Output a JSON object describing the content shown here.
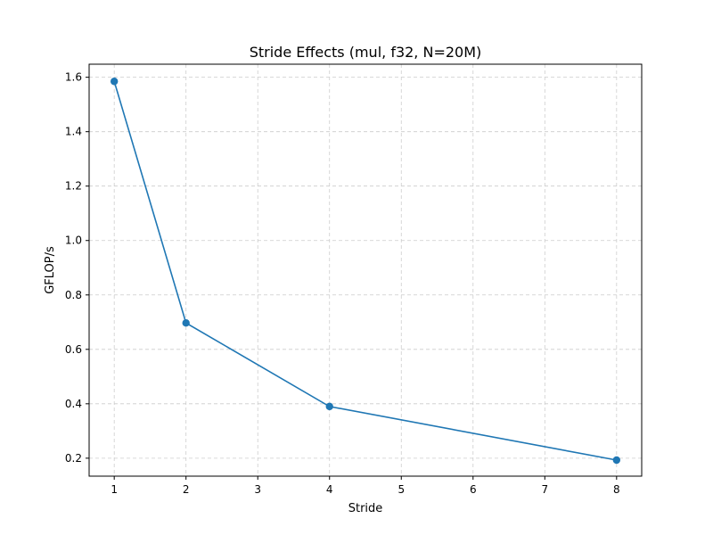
{
  "chart_data": {
    "type": "line",
    "title": "Stride Effects (mul, f32, N=20M)",
    "xlabel": "Stride",
    "ylabel": "GFLOP/s",
    "xlim": [
      0.65,
      8.35
    ],
    "ylim": [
      0.134,
      1.648
    ],
    "x_ticks": [
      1,
      2,
      3,
      4,
      5,
      6,
      7,
      8
    ],
    "y_ticks": [
      0.2,
      0.4,
      0.6,
      0.8,
      1.0,
      1.2,
      1.4,
      1.6
    ],
    "y_tick_labels": [
      "0.2",
      "0.4",
      "0.6",
      "0.8",
      "1.0",
      "1.2",
      "1.4",
      "1.6"
    ],
    "grid": true,
    "grid_style": "dashed",
    "series": [
      {
        "x": [
          1,
          2,
          4,
          8
        ],
        "y": [
          1.585,
          0.697,
          0.39,
          0.193
        ],
        "color": "#1f77b4",
        "marker": "circle"
      }
    ]
  }
}
